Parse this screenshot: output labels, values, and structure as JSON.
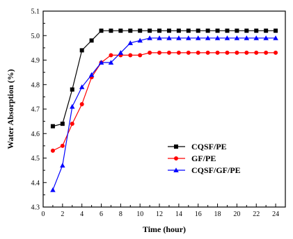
{
  "chart_data": {
    "type": "line",
    "title": "",
    "xlabel": "Time (hour)",
    "ylabel": "Water Absorption (%)",
    "xlim": [
      0,
      25
    ],
    "ylim": [
      4.3,
      5.1
    ],
    "xticks": [
      "0",
      "2",
      "4",
      "6",
      "8",
      "10",
      "12",
      "14",
      "16",
      "18",
      "20",
      "22",
      "24"
    ],
    "yticks": [
      "4.3",
      "4.4",
      "4.5",
      "4.6",
      "4.7",
      "4.8",
      "4.9",
      "5.0",
      "5.1"
    ],
    "grid": false,
    "legend_position": "lower-right",
    "series": [
      {
        "name": "CQSF/PE",
        "color": "#000000",
        "marker": "square",
        "x": [
          1,
          2,
          3,
          4,
          5,
          6,
          7,
          8,
          9,
          10,
          11,
          12,
          13,
          14,
          15,
          16,
          17,
          18,
          19,
          20,
          21,
          22,
          23,
          24
        ],
        "y": [
          4.63,
          4.64,
          4.78,
          4.94,
          4.98,
          5.02,
          5.02,
          5.02,
          5.02,
          5.02,
          5.02,
          5.02,
          5.02,
          5.02,
          5.02,
          5.02,
          5.02,
          5.02,
          5.02,
          5.02,
          5.02,
          5.02,
          5.02,
          5.02
        ]
      },
      {
        "name": "GF/PE",
        "color": "#ff0000",
        "marker": "circle",
        "x": [
          1,
          2,
          3,
          4,
          5,
          6,
          7,
          8,
          9,
          10,
          11,
          12,
          13,
          14,
          15,
          16,
          17,
          18,
          19,
          20,
          21,
          22,
          23,
          24
        ],
        "y": [
          4.53,
          4.55,
          4.64,
          4.72,
          4.83,
          4.89,
          4.92,
          4.92,
          4.92,
          4.92,
          4.93,
          4.93,
          4.93,
          4.93,
          4.93,
          4.93,
          4.93,
          4.93,
          4.93,
          4.93,
          4.93,
          4.93,
          4.93,
          4.93
        ]
      },
      {
        "name": "CQSF/GF/PE",
        "color": "#0000ff",
        "marker": "triangle",
        "x": [
          1,
          2,
          3,
          4,
          5,
          6,
          7,
          8,
          9,
          10,
          11,
          12,
          13,
          14,
          15,
          16,
          17,
          18,
          19,
          20,
          21,
          22,
          23,
          24
        ],
        "y": [
          4.37,
          4.47,
          4.71,
          4.79,
          4.84,
          4.89,
          4.89,
          4.93,
          4.97,
          4.98,
          4.99,
          4.99,
          4.99,
          4.99,
          4.99,
          4.99,
          4.99,
          4.99,
          4.99,
          4.99,
          4.99,
          4.99,
          4.99,
          4.99
        ]
      }
    ]
  }
}
